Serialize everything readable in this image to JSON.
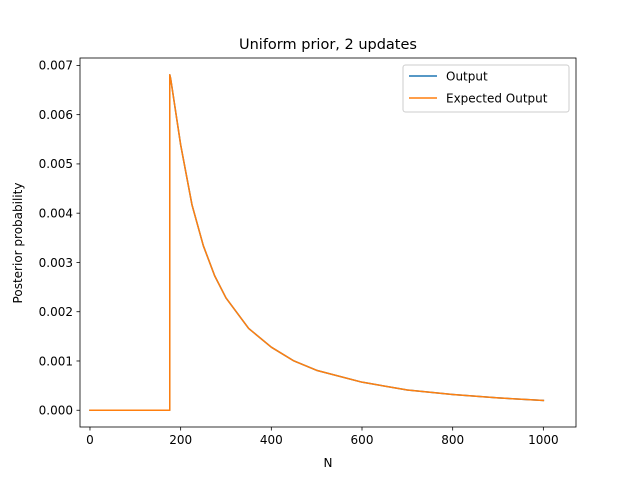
{
  "chart_data": {
    "type": "line",
    "title": "Uniform prior, 2 updates",
    "xlabel": "N",
    "ylabel": "Posterior probability",
    "xlim": [
      -22,
      1072
    ],
    "ylim": [
      -0.00034,
      0.00715
    ],
    "xticks": [
      0,
      200,
      400,
      600,
      800,
      1000
    ],
    "xtick_labels": [
      "0",
      "200",
      "400",
      "600",
      "800",
      "1000"
    ],
    "yticks": [
      0,
      0.001,
      0.002,
      0.003,
      0.004,
      0.005,
      0.006,
      0.007
    ],
    "ytick_labels": [
      "0.000",
      "0.001",
      "0.002",
      "0.003",
      "0.004",
      "0.005",
      "0.006",
      "0.007"
    ],
    "grid": false,
    "legend_position": "top-right",
    "series": [
      {
        "name": "Output",
        "color": "#1f77b4",
        "x": [
          0,
          100,
          176,
          176,
          178,
          200,
          225,
          250,
          275,
          300,
          350,
          400,
          450,
          500,
          600,
          700,
          800,
          900,
          1000
        ],
        "y": [
          0,
          0,
          0,
          0.00681,
          0.00673,
          0.00539,
          0.00417,
          0.00334,
          0.00273,
          0.00228,
          0.00166,
          0.00128,
          0.001,
          0.00081,
          0.00057,
          0.00041,
          0.00032,
          0.00025,
          0.0002
        ]
      },
      {
        "name": "Expected Output",
        "color": "#ff7f0e",
        "x": [
          0,
          100,
          176,
          176,
          178,
          200,
          225,
          250,
          275,
          300,
          350,
          400,
          450,
          500,
          600,
          700,
          800,
          900,
          1000
        ],
        "y": [
          0,
          0,
          0,
          0.00681,
          0.00673,
          0.00539,
          0.00417,
          0.00334,
          0.00273,
          0.00228,
          0.00166,
          0.00128,
          0.001,
          0.00081,
          0.00057,
          0.00041,
          0.00032,
          0.00025,
          0.0002
        ]
      }
    ]
  }
}
